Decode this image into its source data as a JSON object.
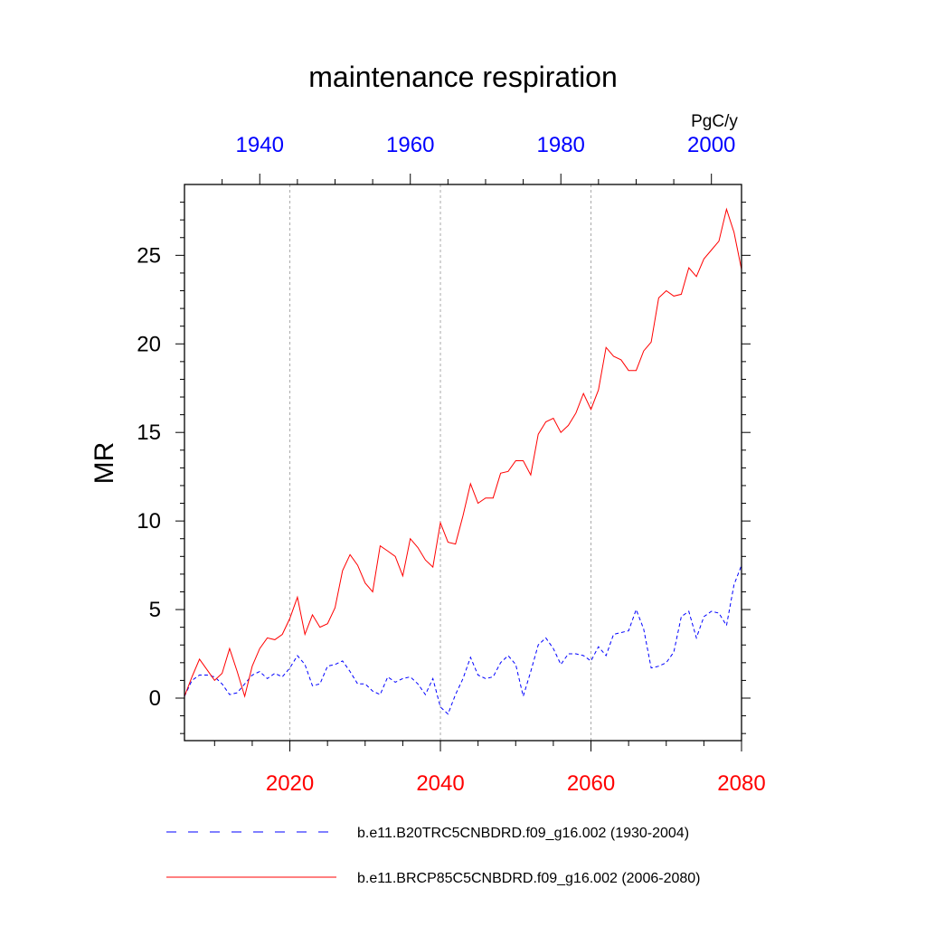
{
  "chart_data": {
    "type": "line",
    "title": "maintenance respiration",
    "ylabel": "MR",
    "units": "PgC/y",
    "ylim": [
      -2.4,
      29
    ],
    "y_ticks": [
      0,
      5,
      10,
      15,
      20,
      25
    ],
    "y_tick_labels": [
      "0",
      "5",
      "10",
      "15",
      "20",
      "25"
    ],
    "bottom_axis": {
      "range": [
        2006,
        2080
      ],
      "ticks": [
        2020,
        2040,
        2060,
        2080
      ],
      "tick_labels": [
        "2020",
        "2040",
        "2060",
        "2080"
      ],
      "color": "#ff0000"
    },
    "top_axis": {
      "range": [
        1930,
        2004
      ],
      "ticks": [
        1940,
        1960,
        1980,
        2000
      ],
      "tick_labels": [
        "1940",
        "1960",
        "1980",
        "2000"
      ],
      "color": "#0000ff"
    },
    "vertical_gridlines_at_bottom_years": [
      2020,
      2040,
      2060
    ],
    "series": [
      {
        "name": "b.e11.B20TRC5CNBDRD.f09_g16.002 (1930-2004)",
        "color": "#0000ff",
        "dash": "dashed",
        "axis": "top",
        "x": [
          1930,
          1931,
          1932,
          1933,
          1934,
          1935,
          1936,
          1937,
          1938,
          1939,
          1940,
          1941,
          1942,
          1943,
          1944,
          1945,
          1946,
          1947,
          1948,
          1949,
          1950,
          1951,
          1952,
          1953,
          1954,
          1955,
          1956,
          1957,
          1958,
          1959,
          1960,
          1961,
          1962,
          1963,
          1964,
          1965,
          1966,
          1967,
          1968,
          1969,
          1970,
          1971,
          1972,
          1973,
          1974,
          1975,
          1976,
          1977,
          1978,
          1979,
          1980,
          1981,
          1982,
          1983,
          1984,
          1985,
          1986,
          1987,
          1988,
          1989,
          1990,
          1991,
          1992,
          1993,
          1994,
          1995,
          1996,
          1997,
          1998,
          1999,
          2000,
          2001,
          2002,
          2003,
          2004
        ],
        "values": [
          0.1,
          1.0,
          1.3,
          1.3,
          1.2,
          0.8,
          0.2,
          0.3,
          0.8,
          1.3,
          1.5,
          1.1,
          1.4,
          1.2,
          1.7,
          2.4,
          1.9,
          0.7,
          0.8,
          1.8,
          1.9,
          2.1,
          1.5,
          0.8,
          0.8,
          0.4,
          0.2,
          1.2,
          0.9,
          1.1,
          1.2,
          0.8,
          0.2,
          1.1,
          -0.5,
          -0.9,
          0.2,
          1.1,
          2.3,
          1.3,
          1.1,
          1.2,
          2.0,
          2.4,
          1.9,
          0.1,
          1.5,
          3.0,
          3.4,
          2.8,
          1.9,
          2.5,
          2.5,
          2.4,
          2.1,
          2.9,
          2.4,
          3.6,
          3.7,
          3.8,
          5.0,
          3.9,
          1.7,
          1.8,
          2.0,
          2.6,
          4.6,
          4.9,
          3.4,
          4.6,
          4.9,
          4.8,
          4.1,
          6.4,
          7.5
        ]
      },
      {
        "name": "b.e11.BRCP85C5CNBDRD.f09_g16.002 (2006-2080)",
        "color": "#ff0000",
        "dash": "solid",
        "axis": "bottom",
        "x": [
          2006,
          2007,
          2008,
          2009,
          2010,
          2011,
          2012,
          2013,
          2014,
          2015,
          2016,
          2017,
          2018,
          2019,
          2020,
          2021,
          2022,
          2023,
          2024,
          2025,
          2026,
          2027,
          2028,
          2029,
          2030,
          2031,
          2032,
          2033,
          2034,
          2035,
          2036,
          2037,
          2038,
          2039,
          2040,
          2041,
          2042,
          2043,
          2044,
          2045,
          2046,
          2047,
          2048,
          2049,
          2050,
          2051,
          2052,
          2053,
          2054,
          2055,
          2056,
          2057,
          2058,
          2059,
          2060,
          2061,
          2062,
          2063,
          2064,
          2065,
          2066,
          2067,
          2068,
          2069,
          2070,
          2071,
          2072,
          2073,
          2074,
          2075,
          2076,
          2077,
          2078,
          2079,
          2080
        ],
        "values": [
          0.1,
          1.2,
          2.2,
          1.6,
          1.0,
          1.4,
          2.8,
          1.5,
          0.1,
          1.8,
          2.8,
          3.4,
          3.3,
          3.6,
          4.5,
          5.7,
          3.6,
          4.7,
          4.0,
          4.2,
          5.1,
          7.2,
          8.1,
          7.5,
          6.5,
          6.0,
          8.6,
          8.3,
          8.0,
          6.9,
          9.0,
          8.5,
          7.8,
          7.4,
          9.9,
          8.8,
          8.7,
          10.3,
          12.1,
          11.0,
          11.3,
          11.3,
          12.7,
          12.8,
          13.4,
          13.4,
          12.6,
          14.9,
          15.6,
          15.8,
          15.0,
          15.4,
          16.1,
          17.2,
          16.3,
          17.4,
          19.8,
          19.3,
          19.1,
          18.5,
          18.5,
          19.6,
          20.1,
          22.6,
          23.0,
          22.7,
          22.8,
          24.3,
          23.8,
          24.8,
          25.3,
          25.8,
          27.6,
          26.3,
          24.2
        ]
      }
    ]
  }
}
